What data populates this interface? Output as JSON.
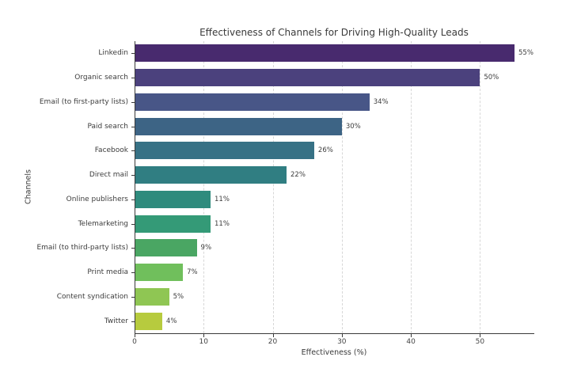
{
  "chart_data": {
    "type": "bar",
    "orientation": "horizontal",
    "title": "Effectiveness of Channels for Driving High-Quality Leads",
    "xlabel": "Effectiveness (%)",
    "ylabel": "Channels",
    "xlim": [
      0,
      57.75
    ],
    "xticks": [
      0,
      10,
      20,
      30,
      40,
      50
    ],
    "grid": "vertical-dashed",
    "legend": "none",
    "categories": [
      "Linkedin",
      "Organic search",
      "Email (to first-party lists)",
      "Paid search",
      "Facebook",
      "Direct mail",
      "Online publishers",
      "Telemarketing",
      "Email (to third-party lists)",
      "Print media",
      "Content syndication",
      "Twitter"
    ],
    "values": [
      55,
      50,
      34,
      30,
      26,
      22,
      11,
      11,
      9,
      7,
      5,
      4
    ],
    "value_labels": [
      "55%",
      "50%",
      "34%",
      "30%",
      "26%",
      "22%",
      "11%",
      "11%",
      "9%",
      "7%",
      "5%",
      "4%"
    ],
    "bar_colors": [
      "#482a6e",
      "#4b417d",
      "#485687",
      "#3d6485",
      "#377185",
      "#307e82",
      "#2f8b7d",
      "#349a77",
      "#4aa663",
      "#70bf5c",
      "#8fc653",
      "#b7cb3e"
    ],
    "text_color": "#3c3c3c",
    "axis_color": "#3a3a3a",
    "grid_color": "#d7d7d7",
    "background_color": "#ffffff"
  }
}
